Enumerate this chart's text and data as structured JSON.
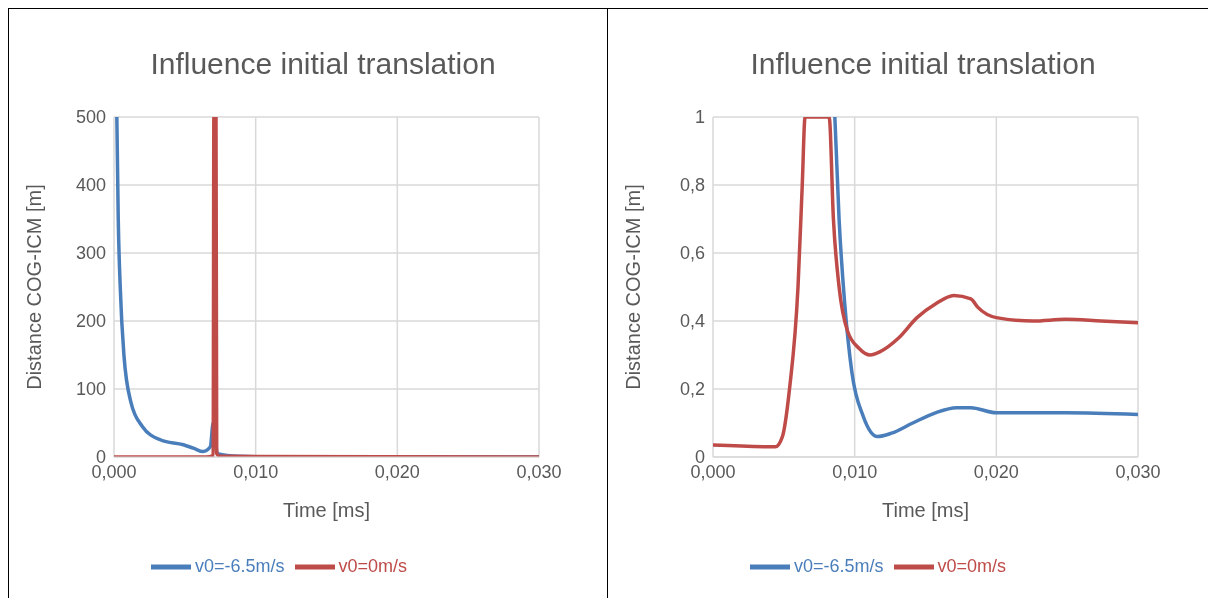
{
  "chart_data": [
    {
      "type": "line",
      "title": "Influence initial translation",
      "xlabel": "Time [ms]",
      "ylabel": "Distance COG-ICM [m]",
      "xlim": [
        0,
        0.03
      ],
      "xticks": [
        {
          "value": 0,
          "label": "0,000"
        },
        {
          "value": 0.01,
          "label": "0,010"
        },
        {
          "value": 0.02,
          "label": "0,020"
        },
        {
          "value": 0.03,
          "label": "0,030"
        }
      ],
      "ylim": [
        0,
        500
      ],
      "yticks": [
        0,
        100,
        200,
        300,
        400,
        500
      ],
      "grid": true,
      "legend": "bottom",
      "series": [
        {
          "name": "v0=-6.5m/s",
          "color": "#4a7ebb",
          "x": [
            0.0002,
            0.0003,
            0.00044,
            0.0007,
            0.0012,
            0.002,
            0.0033,
            0.0049,
            0.0056,
            0.0063,
            0.0068,
            0.007,
            0.0073,
            0.0088,
            0.0114,
            0.03
          ],
          "values": [
            500,
            350,
            250,
            150,
            80,
            45,
            25,
            18,
            13,
            8,
            15,
            50,
            5,
            1,
            0,
            0
          ]
        },
        {
          "name": "v0=0m/s",
          "color": "#be4b48",
          "x": [
            0,
            0.0065,
            0.007,
            0.00705,
            0.0072,
            0.00725,
            0.0075,
            0.03
          ],
          "values": [
            0,
            0,
            2,
            500,
            500,
            5,
            1,
            0
          ]
        }
      ]
    },
    {
      "type": "line",
      "title": "Influence initial translation",
      "xlabel": "Time [ms]",
      "ylabel": "Distance COG-ICM [m]",
      "xlim": [
        0,
        0.03
      ],
      "xticks": [
        {
          "value": 0,
          "label": "0,000"
        },
        {
          "value": 0.01,
          "label": "0,010"
        },
        {
          "value": 0.02,
          "label": "0,020"
        },
        {
          "value": 0.03,
          "label": "0,030"
        }
      ],
      "ylim": [
        0,
        1
      ],
      "yticks": [
        0,
        {
          "value": 0.2,
          "label": "0,2"
        },
        {
          "value": 0.4,
          "label": "0,4"
        },
        {
          "value": 0.6,
          "label": "0,6"
        },
        {
          "value": 0.8,
          "label": "0,8"
        },
        1
      ],
      "grid": true,
      "legend": "bottom",
      "series": [
        {
          "name": "v0=-6.5m/s",
          "color": "#4a7ebb",
          "x": [
            0.0086,
            0.0089,
            0.0093,
            0.0098,
            0.0106,
            0.0116,
            0.0126,
            0.0141,
            0.0157,
            0.0172,
            0.0182,
            0.02,
            0.0249,
            0.03
          ],
          "values": [
            1,
            0.7,
            0.45,
            0.25,
            0.12,
            0.06,
            0.07,
            0.1,
            0.13,
            0.145,
            0.145,
            0.13,
            0.13,
            0.125
          ]
        },
        {
          "name": "v0=0m/s",
          "color": "#be4b48",
          "x": [
            0,
            0.0044,
            0.0049,
            0.0054,
            0.006,
            0.0063,
            0.0065,
            0.0082,
            0.0085,
            0.0089,
            0.0095,
            0.0103,
            0.0111,
            0.0118,
            0.0131,
            0.0144,
            0.0157,
            0.017,
            0.0182,
            0.0187,
            0.02,
            0.0226,
            0.0249,
            0.0274,
            0.03
          ],
          "values": [
            0.035,
            0.03,
            0.06,
            0.2,
            0.5,
            0.8,
            1,
            1,
            0.7,
            0.5,
            0.37,
            0.32,
            0.3,
            0.31,
            0.35,
            0.41,
            0.45,
            0.475,
            0.465,
            0.44,
            0.41,
            0.4,
            0.405,
            0.4,
            0.395
          ]
        }
      ]
    }
  ]
}
